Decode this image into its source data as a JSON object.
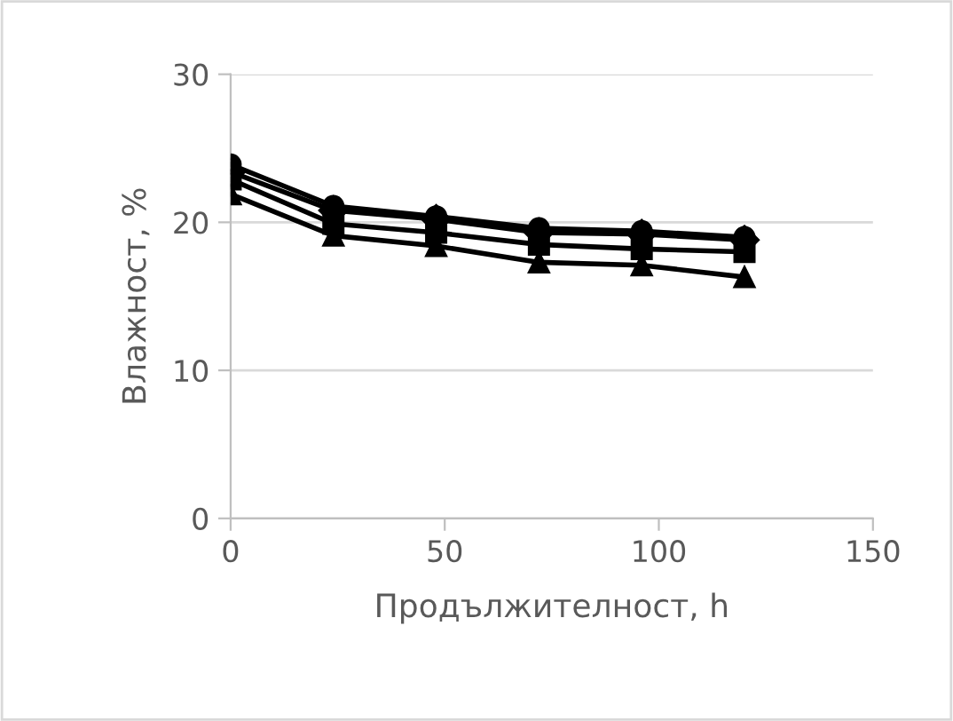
{
  "chart_data": {
    "type": "line",
    "xlabel": "Продължителност, h",
    "ylabel": "Влажност, %",
    "x": [
      0,
      24,
      48,
      72,
      96,
      120
    ],
    "series": [
      {
        "color": "#000000",
        "marker": "circle",
        "values": [
          23.9,
          21.1,
          20.4,
          19.6,
          19.4,
          19.0
        ]
      },
      {
        "color": "#000000",
        "marker": "diamond",
        "values": [
          23.4,
          20.8,
          20.2,
          19.3,
          19.2,
          18.8
        ]
      },
      {
        "color": "#000000",
        "marker": "square",
        "values": [
          22.9,
          19.9,
          19.3,
          18.5,
          18.2,
          18.0
        ]
      },
      {
        "color": "#000000",
        "marker": "triangle",
        "values": [
          21.9,
          19.1,
          18.4,
          17.3,
          17.1,
          16.3
        ]
      }
    ],
    "xlim": [
      0,
      150
    ],
    "xticks": [
      0,
      50,
      100,
      150
    ],
    "ylim": [
      0,
      30
    ],
    "yticks": [
      0,
      10,
      20,
      30
    ],
    "grid": "y",
    "legend": false
  }
}
